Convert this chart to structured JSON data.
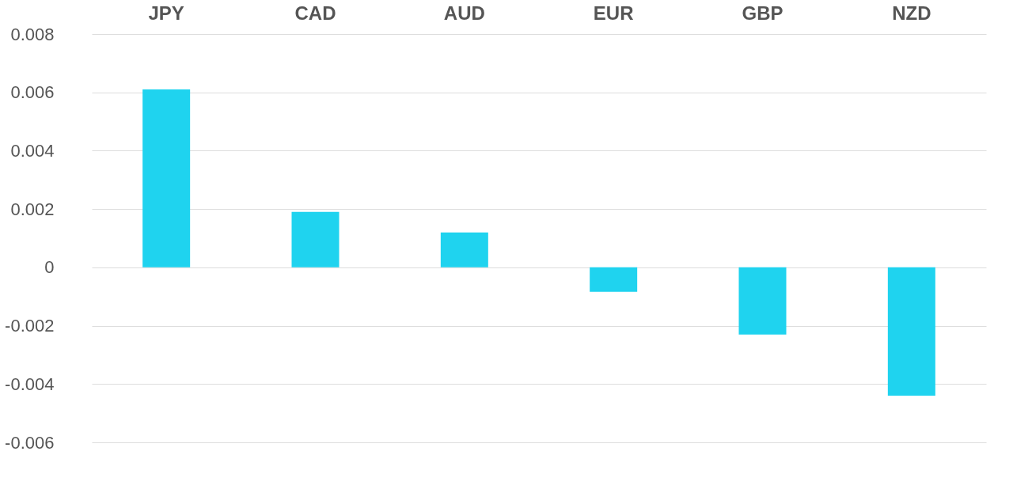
{
  "chart_data": {
    "type": "bar",
    "categories": [
      "JPY",
      "CAD",
      "AUD",
      "EUR",
      "GBP",
      "NZD"
    ],
    "values": [
      0.0061,
      0.0019,
      0.0012,
      -0.00084,
      -0.0023,
      -0.0044
    ],
    "color": "#1fd3ef",
    "ylim": [
      -0.006,
      0.008
    ],
    "yticks": [
      -0.006,
      -0.004,
      -0.002,
      0,
      0.002,
      0.004,
      0.006,
      0.008
    ],
    "grid": "y"
  }
}
